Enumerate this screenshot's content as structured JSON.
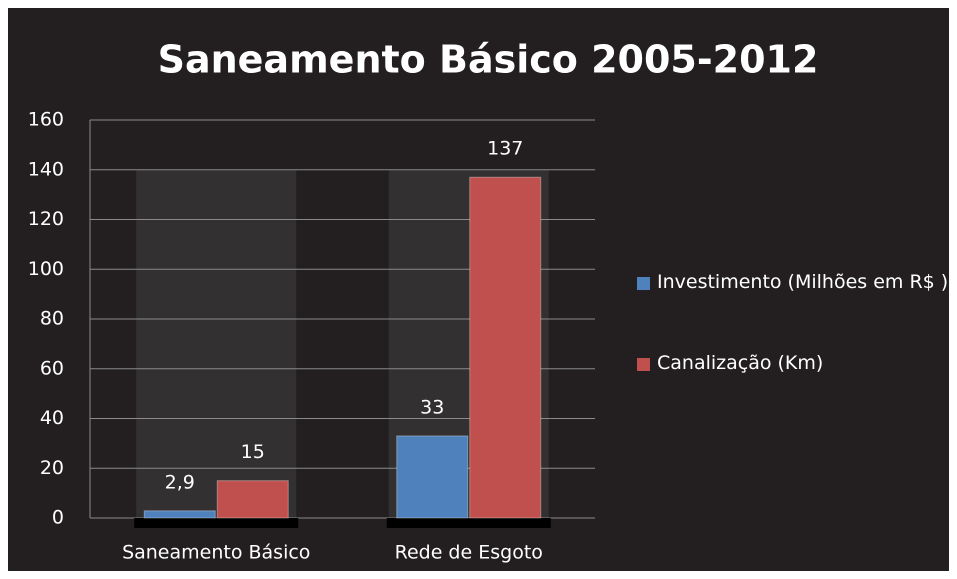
{
  "chart_data": {
    "type": "bar",
    "title": "Saneamento Básico 2005-2012",
    "categories": [
      "Saneamento Básico",
      "Rede de Esgoto"
    ],
    "series": [
      {
        "name": "Investimento (Milhões em R$ )",
        "color": "#4f81bd",
        "values": [
          2.9,
          33
        ],
        "value_labels": [
          "2,9",
          "33"
        ]
      },
      {
        "name": "Canalização (Km)",
        "color": "#c0504d",
        "values": [
          15,
          137
        ]
      }
    ],
    "ylim": [
      0,
      160
    ],
    "yticks": [
      0,
      20,
      40,
      60,
      80,
      100,
      120,
      140,
      160
    ],
    "grid": true,
    "legend": "right"
  }
}
